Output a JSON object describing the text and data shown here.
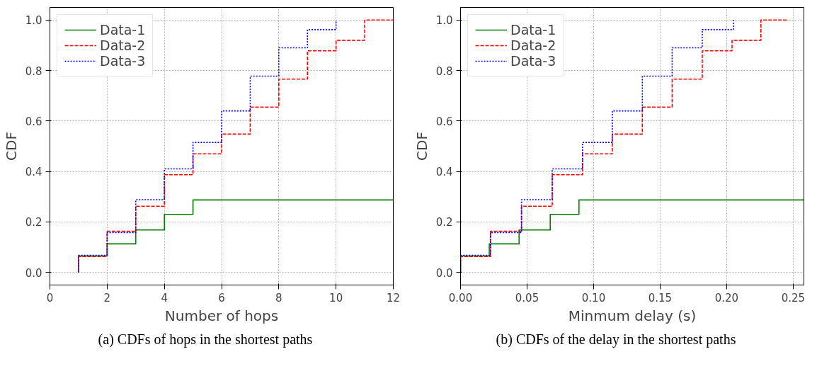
{
  "chart_data": [
    {
      "type": "step",
      "xlabel": "Number of hops",
      "ylabel": "CDF",
      "xlim": [
        0,
        12
      ],
      "ylim": [
        -0.05,
        1.05
      ],
      "xticks": [
        0,
        2,
        4,
        6,
        8,
        10,
        12
      ],
      "yticks": [
        {
          "value": 0,
          "label": "0.0"
        },
        {
          "value": 0.2,
          "label": "0.2"
        },
        {
          "value": 0.4,
          "label": "0.4"
        },
        {
          "value": 0.6,
          "label": "0.6"
        },
        {
          "value": 0.8,
          "label": "0.8"
        },
        {
          "value": 1,
          "label": "1.0"
        }
      ],
      "grid": true,
      "legend": "top left",
      "annotations": [
        "(a) CDFs of hops in the shortest paths"
      ],
      "series": [
        {
          "name": "Data-1",
          "color": "#008000",
          "line_style": "solid",
          "x": [
            1,
            1,
            2,
            3,
            4,
            5,
            12
          ],
          "values": [
            0,
            0.065,
            0.113,
            0.168,
            0.23,
            0.287,
            0.287
          ]
        },
        {
          "name": "Data-2",
          "color": "#ff0000",
          "line_style": "dashed",
          "x": [
            1,
            1,
            2,
            3,
            4,
            5,
            6,
            7,
            8,
            9,
            10,
            11,
            12
          ],
          "values": [
            0,
            0.063,
            0.163,
            0.262,
            0.387,
            0.47,
            0.548,
            0.655,
            0.766,
            0.878,
            0.92,
            1.0,
            1.0
          ]
        },
        {
          "name": "Data-3",
          "color": "#0000ff",
          "line_style": "dotted",
          "x": [
            1,
            1,
            2,
            3,
            4,
            5,
            6,
            7,
            8,
            9,
            10
          ],
          "values": [
            0,
            0.068,
            0.158,
            0.288,
            0.41,
            0.515,
            0.64,
            0.778,
            0.89,
            0.962,
            1.0
          ]
        }
      ]
    },
    {
      "type": "step",
      "xlabel": "Minmum delay (s)",
      "ylabel": "CDF",
      "xlim": [
        0,
        0.258
      ],
      "ylim": [
        -0.05,
        1.05
      ],
      "xticks": [
        {
          "value": 0,
          "label": "0.00"
        },
        {
          "value": 0.05,
          "label": "0.05"
        },
        {
          "value": 0.1,
          "label": "0.10"
        },
        {
          "value": 0.15,
          "label": "0.15"
        },
        {
          "value": 0.2,
          "label": "0.20"
        },
        {
          "value": 0.25,
          "label": "0.25"
        }
      ],
      "yticks": [
        {
          "value": 0,
          "label": "0.0"
        },
        {
          "value": 0.2,
          "label": "0.2"
        },
        {
          "value": 0.4,
          "label": "0.4"
        },
        {
          "value": 0.6,
          "label": "0.6"
        },
        {
          "value": 0.8,
          "label": "0.8"
        },
        {
          "value": 1,
          "label": "1.0"
        }
      ],
      "grid": true,
      "legend": "top left",
      "annotations": [
        "(b) CDFs of the delay in the shortest paths"
      ],
      "series": [
        {
          "name": "Data-1",
          "color": "#008000",
          "line_style": "solid",
          "x": [
            0,
            0,
            0.0216,
            0.044,
            0.0674,
            0.089,
            0.258
          ],
          "values": [
            0,
            0.065,
            0.113,
            0.168,
            0.23,
            0.287,
            0.287
          ]
        },
        {
          "name": "Data-2",
          "color": "#ff0000",
          "line_style": "dashed",
          "x": [
            0,
            0,
            0.0225,
            0.0458,
            0.0689,
            0.0917,
            0.114,
            0.1366,
            0.159,
            0.1816,
            0.204,
            0.2257,
            0.2463
          ],
          "values": [
            0,
            0.063,
            0.163,
            0.262,
            0.387,
            0.47,
            0.548,
            0.655,
            0.766,
            0.878,
            0.92,
            1.0,
            1.0
          ]
        },
        {
          "name": "Data-3",
          "color": "#0000ff",
          "line_style": "dotted",
          "x": [
            0,
            0,
            0.0225,
            0.0458,
            0.0689,
            0.0917,
            0.114,
            0.1366,
            0.159,
            0.1816,
            0.205
          ],
          "values": [
            0,
            0.068,
            0.158,
            0.288,
            0.41,
            0.515,
            0.64,
            0.778,
            0.89,
            0.962,
            1.0
          ]
        }
      ]
    }
  ]
}
